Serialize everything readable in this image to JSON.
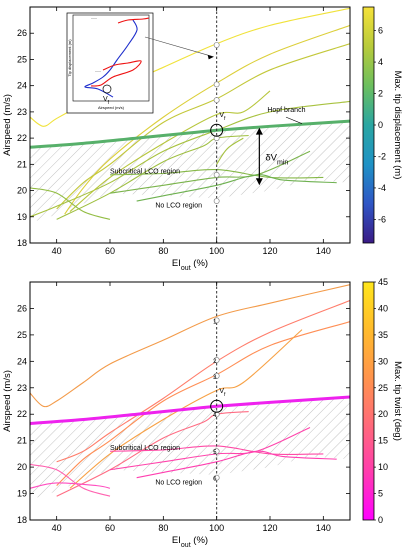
{
  "chart_data": [
    {
      "type": "line",
      "xlabel": "EI",
      "xlabel_sub": "out",
      "xlabel_unit": "(%)",
      "ylabel": "Airspeed (m/s)",
      "xlim": [
        30,
        150
      ],
      "ylim": [
        18,
        27
      ],
      "xticks": [
        40,
        60,
        80,
        100,
        120,
        140
      ],
      "yticks": [
        18,
        19,
        20,
        21,
        22,
        23,
        24,
        25,
        26
      ],
      "colorbar": {
        "label": "Max. tip displacement (m)",
        "range": [
          -7.5,
          7.5
        ],
        "ticks": [
          -6,
          -4,
          -2,
          0,
          2,
          4,
          6
        ],
        "colors": [
          "#3a1b85",
          "#2f56c5",
          "#1f92c5",
          "#2aa6a2",
          "#6cbf5e",
          "#b8cb3b",
          "#f6e23a"
        ]
      },
      "annotations": {
        "hopf": "Hopf branch",
        "subcritical": "Subcritical LCO region",
        "nolco": "No LCO region",
        "dv_main": "δV",
        "dv_sub": "min",
        "vf_main": "V",
        "vf_sub": "f",
        "inset_ylabel": "Tip displacement (m)",
        "inset_xlabel": "Airspeed (m/s)",
        "inset_vf_main": "V",
        "inset_vf_sub": "f",
        "dots": "···"
      },
      "reference_line_x": 100,
      "hopf_branch": {
        "x": [
          30,
          50,
          70,
          90,
          100,
          120,
          150
        ],
        "y": [
          21.65,
          21.8,
          22.0,
          22.2,
          22.3,
          22.45,
          22.65
        ]
      },
      "curves": [
        {
          "x": [
            30,
            35,
            40,
            50,
            60,
            80,
            100,
            120,
            150
          ],
          "y": [
            22.8,
            22.45,
            22.75,
            23.3,
            23.8,
            24.7,
            25.6,
            26.3,
            26.95
          ],
          "color": "#f0e23a"
        },
        {
          "x": [
            43,
            50,
            60,
            80,
            100,
            120,
            150
          ],
          "y": [
            19.1,
            20.1,
            21.2,
            22.8,
            24.1,
            25.2,
            26.3
          ],
          "color": "#dccf3a"
        },
        {
          "x": [
            40,
            50,
            60,
            80,
            100,
            120,
            150
          ],
          "y": [
            19.3,
            20.3,
            21.0,
            22.6,
            23.5,
            24.6,
            25.6
          ],
          "color": "#c3c83a"
        },
        {
          "x": [
            30,
            40,
            60,
            80,
            100,
            120,
            150
          ],
          "y": [
            19.0,
            19.4,
            20.3,
            21.5,
            22.3,
            23.0,
            23.4
          ],
          "color": "#a8c23f"
        },
        {
          "x": [
            45,
            60,
            80,
            100,
            110,
            120
          ],
          "y": [
            19.2,
            20.5,
            21.8,
            22.9,
            23.0,
            23.8
          ],
          "color": "#b7c63c"
        },
        {
          "x": [
            40,
            60,
            80,
            95,
            100,
            112
          ],
          "y": [
            18.9,
            19.9,
            21.1,
            21.7,
            22.0,
            22.1
          ],
          "color": "#9fbf41"
        },
        {
          "x": [
            60,
            80,
            100,
            120,
            140
          ],
          "y": [
            20.6,
            20.65,
            20.8,
            20.5,
            20.5
          ],
          "color": "#86b848"
        },
        {
          "x": [
            60,
            80,
            100,
            115,
            135
          ],
          "y": [
            19.9,
            20.2,
            20.5,
            20.6,
            21.5
          ],
          "color": "#7bb44c"
        },
        {
          "x": [
            30,
            40,
            50,
            60
          ],
          "y": [
            20.1,
            19.9,
            19.2,
            18.9
          ],
          "color": "#93bd44"
        },
        {
          "x": [
            70,
            80,
            100,
            115,
            125,
            145
          ],
          "y": [
            19.6,
            19.8,
            20.2,
            20.6,
            20.4,
            20.3
          ],
          "color": "#6eb150"
        },
        {
          "x": [
            100,
            104,
            110
          ],
          "y": [
            21.0,
            21.6,
            22.0
          ],
          "color": "#a6c33f"
        }
      ],
      "markers": [
        {
          "x": 100,
          "y": 25.55
        },
        {
          "x": 100,
          "y": 24.05
        },
        {
          "x": 100,
          "y": 23.45
        },
        {
          "x": 100,
          "y": 22.0
        },
        {
          "x": 100,
          "y": 20.6
        },
        {
          "x": 100,
          "y": 19.6
        }
      ],
      "vf_circle": {
        "x": 100,
        "y": 22.3
      },
      "dv": {
        "x": 116,
        "y_top": 22.4,
        "y_bottom": 20.2
      }
    },
    {
      "type": "line",
      "xlabel": "EI",
      "xlabel_sub": "out",
      "xlabel_unit": "(%)",
      "ylabel": "Airspeed (m/s)",
      "xlim": [
        30,
        150
      ],
      "ylim": [
        18,
        27
      ],
      "xticks": [
        40,
        60,
        80,
        100,
        120,
        140
      ],
      "yticks": [
        18,
        19,
        20,
        21,
        22,
        23,
        24,
        25,
        26
      ],
      "colorbar": {
        "label": "Max. tip twist (deg)",
        "range": [
          0,
          45
        ],
        "ticks": [
          0,
          5,
          10,
          15,
          20,
          25,
          30,
          35,
          40,
          45
        ],
        "colors": [
          "#ff00ff",
          "#ff3cae",
          "#ff6a7a",
          "#ff944c",
          "#ffbb2c",
          "#ffe61c"
        ]
      },
      "annotations": {
        "subcritical": "Subcritical LCO region",
        "nolco": "No LCO region",
        "vf_main": "V",
        "vf_sub": "f"
      },
      "reference_line_x": 100,
      "hopf_branch": {
        "x": [
          30,
          50,
          70,
          90,
          100,
          120,
          150
        ],
        "y": [
          21.65,
          21.8,
          22.0,
          22.2,
          22.3,
          22.45,
          22.65
        ]
      },
      "curves": [
        {
          "x": [
            30,
            35,
            40,
            50,
            60,
            80,
            100,
            120,
            150
          ],
          "y": [
            22.8,
            22.3,
            22.5,
            23.2,
            23.9,
            24.8,
            25.7,
            26.2,
            26.9
          ],
          "color": "#f39b4a"
        },
        {
          "x": [
            40,
            50,
            60,
            80,
            100,
            120,
            150
          ],
          "y": [
            20.2,
            20.6,
            21.3,
            22.6,
            24.0,
            25.1,
            26.3
          ],
          "color": "#ff7d6b"
        },
        {
          "x": [
            40,
            50,
            60,
            80,
            100,
            120,
            150
          ],
          "y": [
            19.3,
            20.3,
            21.0,
            22.5,
            23.5,
            24.6,
            25.5
          ],
          "color": "#ff8e55"
        },
        {
          "x": [
            45,
            60,
            80,
            100,
            110,
            132
          ],
          "y": [
            19.2,
            20.5,
            21.8,
            22.9,
            23.2,
            25.2
          ],
          "color": "#f7a145"
        },
        {
          "x": [
            40,
            60,
            80,
            95,
            100,
            112
          ],
          "y": [
            18.9,
            19.9,
            21.1,
            21.7,
            22.0,
            22.1
          ],
          "color": "#ff6c83"
        },
        {
          "x": [
            60,
            80,
            100,
            120,
            140
          ],
          "y": [
            20.6,
            20.65,
            20.8,
            20.5,
            20.5
          ],
          "color": "#ff4aa6"
        },
        {
          "x": [
            60,
            80,
            100,
            115,
            135
          ],
          "y": [
            19.9,
            20.2,
            20.5,
            20.6,
            21.5
          ],
          "color": "#ff45ac"
        },
        {
          "x": [
            30,
            40,
            50,
            60
          ],
          "y": [
            20.1,
            19.9,
            19.2,
            18.9
          ],
          "color": "#ff62b0"
        },
        {
          "x": [
            70,
            80,
            100,
            115,
            125,
            145
          ],
          "y": [
            19.6,
            19.8,
            20.2,
            20.6,
            20.4,
            20.3
          ],
          "color": "#ff3fb0"
        },
        {
          "x": [
            30,
            40,
            55,
            60
          ],
          "y": [
            19.2,
            19.4,
            19.3,
            19.2
          ],
          "color": "#ff4dc0"
        }
      ],
      "markers": [
        {
          "x": 100,
          "y": 25.55,
          "label": "1"
        },
        {
          "x": 100,
          "y": 24.05,
          "label": "2"
        },
        {
          "x": 100,
          "y": 23.45,
          "label": "3"
        },
        {
          "x": 100,
          "y": 22.0,
          "label": "4"
        },
        {
          "x": 100,
          "y": 20.6,
          "label": "5"
        },
        {
          "x": 100,
          "y": 19.6,
          "label": "6"
        }
      ],
      "vf_circle": {
        "x": 100,
        "y": 22.3
      }
    }
  ]
}
